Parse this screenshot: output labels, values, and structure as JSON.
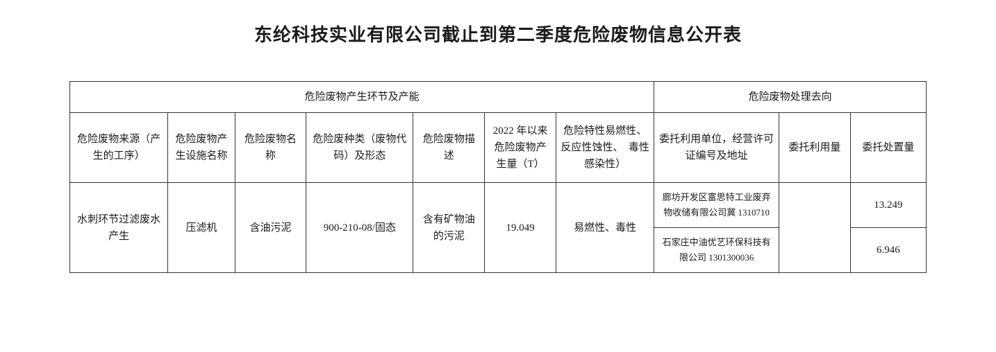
{
  "title": "东纶科技实业有限公司截止到第二季度危险废物信息公开表",
  "table": {
    "header_group_left": "危险废物产生环节及产能",
    "header_group_right": "危险废物处理去向",
    "columns": [
      "危险废物来源（产生的工序）",
      "危险废物产生设施名称",
      "危险废物名称",
      "危险废种类（废物代码）及形态",
      "危险废物描述",
      "2022 年以来危险废物产生量（T）",
      "危险特性易燃性、反应性蚀性、　毒性感染性）",
      "委托利用单位，经营许可证编号及地址",
      "委托利用量",
      "委托处置量"
    ],
    "row": {
      "source": "水刺环节过滤废水产生",
      "facility": "压滤机",
      "waste_name": "含油污泥",
      "waste_code": "900-210-08/固态",
      "waste_desc": "含有矿物油的污泥",
      "gen_amount": "19.049",
      "hazard": "易燃性、毒性",
      "company_a": "廊坊开发区富思特工业废弃物收储有限公司冀 1310710",
      "company_b": "石家庄中油优艺环保科技有限公司 1301300036",
      "commission_use": "",
      "disposal_a": "13.249",
      "disposal_b": "6.946"
    }
  }
}
